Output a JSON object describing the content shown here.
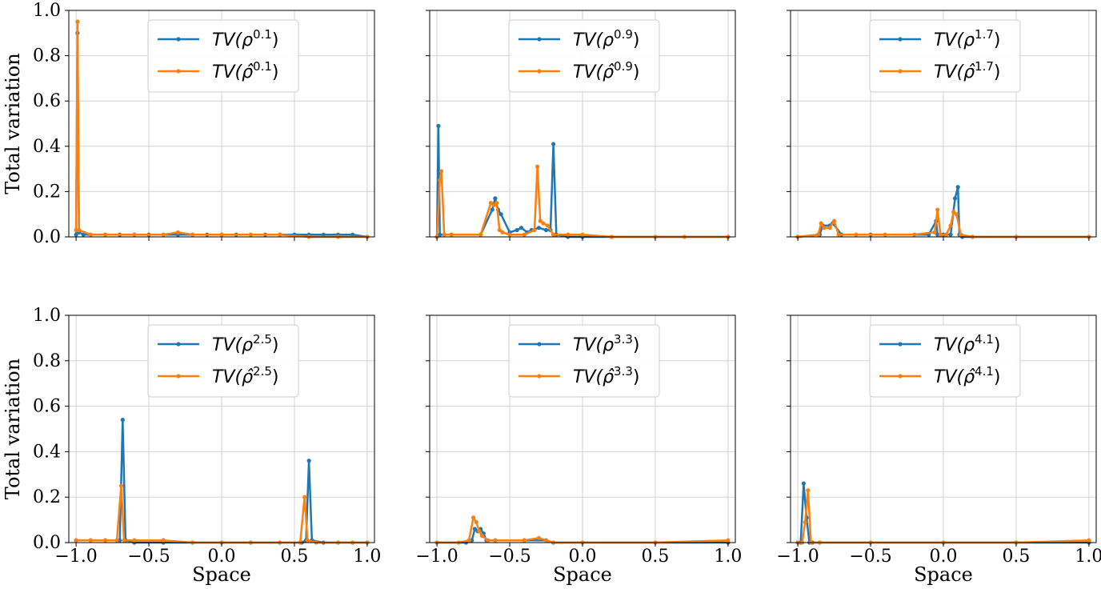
{
  "colors": {
    "series_1": "#1f77b4",
    "series_2": "#ff7f0e",
    "grid": "#d3d3d3",
    "frame": "#000000"
  },
  "chart_data": [
    {
      "type": "line",
      "grid": true,
      "legend": "top-center",
      "xlim": [
        -1.05,
        1.05
      ],
      "ylim": [
        0,
        1
      ],
      "ylabel": "Total variation",
      "xlabel": "",
      "series": [
        {
          "name": "TV(ρ^0.1)",
          "x": [
            -1.0,
            -0.99,
            -0.98,
            -0.95,
            -0.9,
            -0.8,
            -0.7,
            -0.6,
            -0.5,
            -0.4,
            -0.3,
            -0.2,
            -0.1,
            0.0,
            0.1,
            0.2,
            0.3,
            0.4,
            0.5,
            0.6,
            0.7,
            0.8,
            0.9,
            1.0
          ],
          "y": [
            0.01,
            0.9,
            0.02,
            0.01,
            0.01,
            0.01,
            0.01,
            0.01,
            0.01,
            0.01,
            0.01,
            0.01,
            0.01,
            0.01,
            0.01,
            0.01,
            0.01,
            0.01,
            0.01,
            0.01,
            0.01,
            0.01,
            0.01,
            0.0
          ]
        },
        {
          "name": "TV(ρ̂^0.1)",
          "x": [
            -1.0,
            -0.99,
            -0.98,
            -0.9,
            -0.8,
            -0.6,
            -0.4,
            -0.3,
            -0.2,
            0.0,
            0.2,
            0.4,
            0.6,
            0.8,
            1.0
          ],
          "y": [
            0.03,
            0.95,
            0.03,
            0.01,
            0.01,
            0.01,
            0.01,
            0.02,
            0.01,
            0.01,
            0.01,
            0.01,
            0.0,
            0.0,
            0.0
          ]
        }
      ]
    },
    {
      "type": "line",
      "grid": true,
      "legend": "top-center",
      "xlim": [
        -1.05,
        1.05
      ],
      "ylim": [
        0,
        1
      ],
      "ylabel": "",
      "xlabel": "",
      "series": [
        {
          "name": "TV(ρ^0.9)",
          "x": [
            -1.0,
            -0.99,
            -0.98,
            -0.9,
            -0.7,
            -0.62,
            -0.6,
            -0.58,
            -0.56,
            -0.5,
            -0.45,
            -0.42,
            -0.38,
            -0.35,
            -0.3,
            -0.25,
            -0.22,
            -0.2,
            -0.18,
            -0.1,
            0.0,
            0.2,
            0.5,
            1.0
          ],
          "y": [
            0.0,
            0.49,
            0.01,
            0.01,
            0.01,
            0.12,
            0.17,
            0.12,
            0.1,
            0.02,
            0.03,
            0.04,
            0.02,
            0.03,
            0.04,
            0.03,
            0.03,
            0.41,
            0.01,
            0.0,
            0.0,
            0.0,
            0.0,
            0.0
          ]
        },
        {
          "name": "TV(ρ̂^0.9)",
          "x": [
            -1.0,
            -0.98,
            -0.97,
            -0.95,
            -0.9,
            -0.7,
            -0.63,
            -0.61,
            -0.59,
            -0.57,
            -0.55,
            -0.5,
            -0.4,
            -0.33,
            -0.31,
            -0.29,
            -0.27,
            -0.24,
            -0.2,
            -0.1,
            0.0,
            0.2,
            0.5,
            0.7,
            1.0
          ],
          "y": [
            0.0,
            0.25,
            0.29,
            0.01,
            0.01,
            0.01,
            0.15,
            0.14,
            0.15,
            0.03,
            0.02,
            0.01,
            0.01,
            0.03,
            0.31,
            0.07,
            0.06,
            0.05,
            0.01,
            0.01,
            0.01,
            0.0,
            0.0,
            0.0,
            0.0
          ]
        }
      ]
    },
    {
      "type": "line",
      "grid": true,
      "legend": "top-center",
      "xlim": [
        -1.05,
        1.05
      ],
      "ylim": [
        0,
        1
      ],
      "ylabel": "",
      "xlabel": "",
      "series": [
        {
          "name": "TV(ρ^1.7)",
          "x": [
            -1.0,
            -0.85,
            -0.83,
            -0.78,
            -0.76,
            -0.7,
            -0.5,
            -0.2,
            -0.1,
            -0.05,
            -0.04,
            0.0,
            0.05,
            0.08,
            0.1,
            0.11,
            0.13,
            0.2,
            0.5,
            1.0
          ],
          "y": [
            0.0,
            0.01,
            0.05,
            0.05,
            0.06,
            0.01,
            0.01,
            0.01,
            0.01,
            0.07,
            0.01,
            0.01,
            0.01,
            0.17,
            0.22,
            0.01,
            0.0,
            0.0,
            0.0,
            0.0
          ]
        },
        {
          "name": "TV(ρ̂^1.7)",
          "x": [
            -1.0,
            -0.86,
            -0.84,
            -0.82,
            -0.78,
            -0.75,
            -0.72,
            -0.6,
            -0.4,
            -0.2,
            -0.06,
            -0.04,
            -0.02,
            0.02,
            0.05,
            0.07,
            0.09,
            0.12,
            0.2,
            0.5,
            1.0
          ],
          "y": [
            0.0,
            0.01,
            0.06,
            0.04,
            0.04,
            0.07,
            0.01,
            0.01,
            0.01,
            0.01,
            0.02,
            0.12,
            0.01,
            0.01,
            0.05,
            0.11,
            0.1,
            0.01,
            0.0,
            0.0,
            0.0
          ]
        }
      ]
    },
    {
      "type": "line",
      "grid": true,
      "legend": "top-center",
      "xlim": [
        -1.05,
        1.05
      ],
      "ylim": [
        0,
        1
      ],
      "ylabel": "Total variation",
      "xlabel": "Space",
      "series": [
        {
          "name": "TV(ρ^2.5)",
          "x": [
            -1.0,
            -0.9,
            -0.8,
            -0.7,
            -0.68,
            -0.66,
            -0.6,
            -0.4,
            -0.2,
            0.0,
            0.2,
            0.4,
            0.55,
            0.58,
            0.6,
            0.62,
            0.7,
            0.8,
            0.9,
            1.0
          ],
          "y": [
            0.01,
            0.01,
            0.01,
            0.01,
            0.54,
            0.01,
            0.0,
            0.0,
            0.0,
            0.0,
            0.0,
            0.0,
            0.0,
            0.01,
            0.36,
            0.01,
            0.0,
            0.0,
            0.0,
            0.0
          ]
        },
        {
          "name": "TV(ρ̂^2.5)",
          "x": [
            -1.0,
            -0.9,
            -0.8,
            -0.72,
            -0.69,
            -0.67,
            -0.6,
            -0.4,
            -0.2,
            0.0,
            0.2,
            0.4,
            0.54,
            0.57,
            0.59,
            0.65,
            0.8,
            0.9,
            1.0
          ],
          "y": [
            0.01,
            0.01,
            0.01,
            0.01,
            0.25,
            0.01,
            0.01,
            0.01,
            0.0,
            0.0,
            0.0,
            0.0,
            0.0,
            0.2,
            0.01,
            0.0,
            0.0,
            0.0,
            0.0
          ]
        }
      ]
    },
    {
      "type": "line",
      "grid": true,
      "legend": "top-center",
      "xlim": [
        -1.05,
        1.05
      ],
      "ylim": [
        0,
        1
      ],
      "ylabel": "",
      "xlabel": "Space",
      "series": [
        {
          "name": "TV(ρ^3.3)",
          "x": [
            -1.0,
            -0.8,
            -0.76,
            -0.74,
            -0.72,
            -0.7,
            -0.68,
            -0.66,
            -0.6,
            -0.4,
            -0.25,
            -0.2,
            0.0,
            0.5,
            1.0
          ],
          "y": [
            0.0,
            0.0,
            0.01,
            0.06,
            0.05,
            0.06,
            0.04,
            0.01,
            0.01,
            0.01,
            0.01,
            0.0,
            0.0,
            0.0,
            0.0
          ]
        },
        {
          "name": "TV(ρ̂^3.3)",
          "x": [
            -1.0,
            -0.85,
            -0.78,
            -0.75,
            -0.73,
            -0.71,
            -0.69,
            -0.65,
            -0.6,
            -0.4,
            -0.3,
            -0.25,
            -0.2,
            0.0,
            0.5,
            1.0
          ],
          "y": [
            0.0,
            0.0,
            0.01,
            0.11,
            0.09,
            0.05,
            0.03,
            0.01,
            0.01,
            0.01,
            0.02,
            0.01,
            0.0,
            0.0,
            0.0,
            0.01
          ]
        }
      ]
    },
    {
      "type": "line",
      "grid": true,
      "legend": "top-center",
      "xlim": [
        -1.05,
        1.05
      ],
      "ylim": [
        0,
        1
      ],
      "ylabel": "",
      "xlabel": "Space",
      "series": [
        {
          "name": "TV(ρ^4.1)",
          "x": [
            -1.0,
            -0.98,
            -0.96,
            -0.94,
            -0.92,
            -0.9,
            -0.85,
            -0.5,
            0.0,
            0.5,
            1.0
          ],
          "y": [
            0.0,
            0.0,
            0.26,
            0.11,
            0.0,
            0.0,
            0.0,
            0.0,
            0.0,
            0.0,
            0.0
          ]
        },
        {
          "name": "TV(ρ̂^4.1)",
          "x": [
            -1.0,
            -0.97,
            -0.95,
            -0.93,
            -0.91,
            -0.85,
            -0.5,
            0.0,
            0.5,
            1.0
          ],
          "y": [
            0.0,
            0.0,
            0.09,
            0.23,
            0.0,
            0.0,
            0.0,
            0.0,
            0.0,
            0.01
          ]
        }
      ]
    }
  ]
}
